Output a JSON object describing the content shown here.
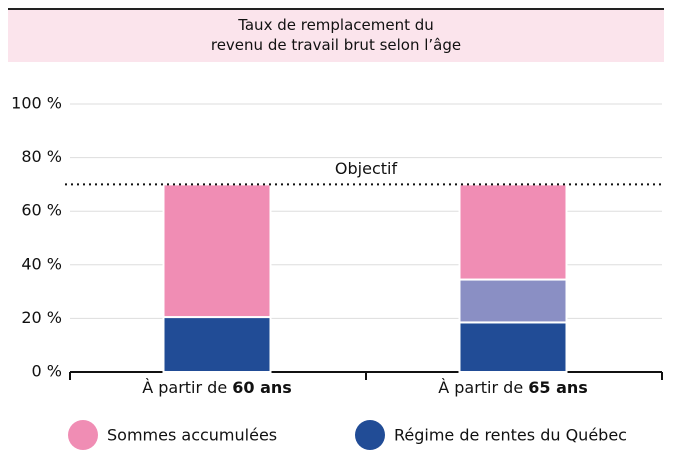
{
  "chart_data": {
    "type": "stacked_bar",
    "title": "Taux de remplacement du\nrevenu de travail brut selon l’âge",
    "category_prefix": "À partir de",
    "categories": [
      "60 ans",
      "65 ans"
    ],
    "series": [
      {
        "name": "Régime de rentes du Québec",
        "color": "#214c96",
        "values": [
          20.5,
          18.5
        ]
      },
      {
        "color": "#8a8fc4",
        "values": [
          null,
          16
        ]
      },
      {
        "name": "Sommes accumulées",
        "color": "#f08db4",
        "values": [
          49.5,
          35.5
        ]
      }
    ],
    "ylim": [
      0,
      100
    ],
    "yticks": [
      {
        "value": 0,
        "label": "0 %"
      },
      {
        "value": 20,
        "label": "20 %"
      },
      {
        "value": 40,
        "label": "40 %"
      },
      {
        "value": 60,
        "label": "60 %"
      },
      {
        "value": 80,
        "label": "80 %"
      },
      {
        "value": 100,
        "label": "100 %"
      }
    ],
    "grid": true,
    "target": {
      "label": "Objectif",
      "value": 70
    },
    "legend_order": [
      2,
      0
    ]
  }
}
